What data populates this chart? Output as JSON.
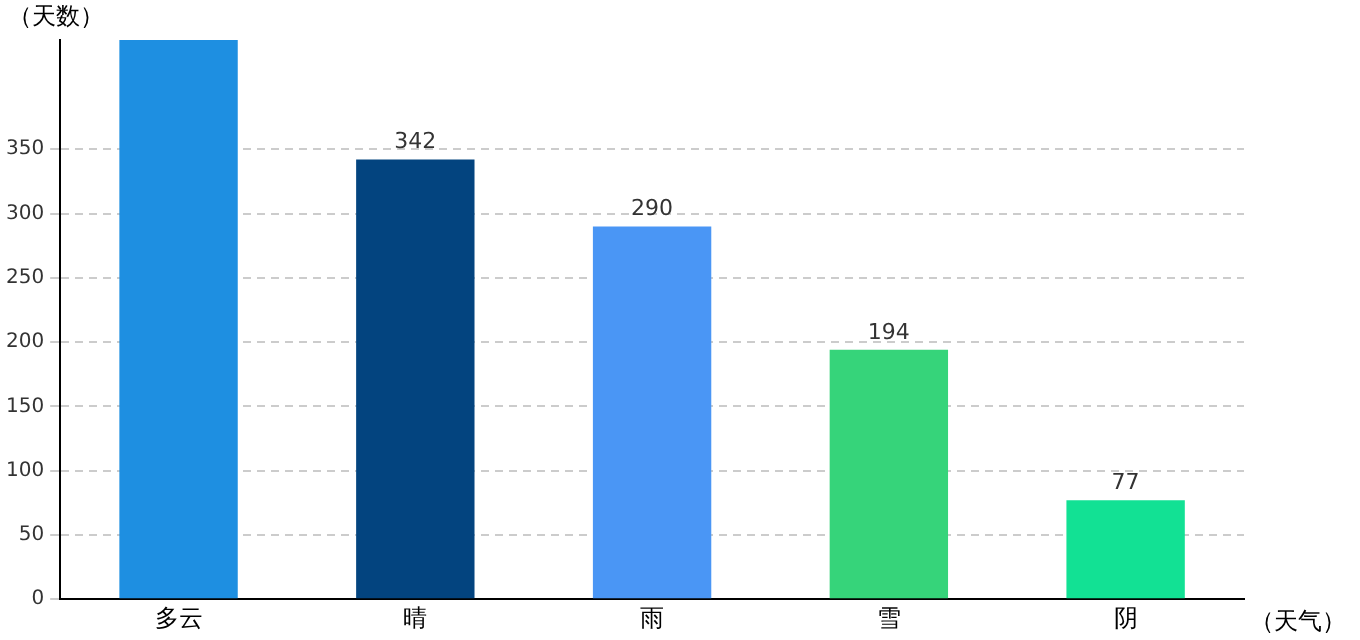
{
  "chart_data": {
    "type": "bar",
    "xlabel": "（天气）",
    "ylabel": "（天数）",
    "categories": [
      "多云",
      "晴",
      "雨",
      "雪",
      "阴"
    ],
    "values": [
      435,
      342,
      290,
      194,
      77
    ],
    "value_labels": [
      null,
      "342",
      "290",
      "194",
      "77"
    ],
    "colors": [
      "#1e8fe1",
      "#03447f",
      "#4a96f5",
      "#36d47a",
      "#12e194"
    ],
    "ylim": [
      0,
      435
    ],
    "yticks": [
      0,
      50,
      100,
      150,
      200,
      250,
      300,
      350
    ],
    "grid": "y"
  }
}
